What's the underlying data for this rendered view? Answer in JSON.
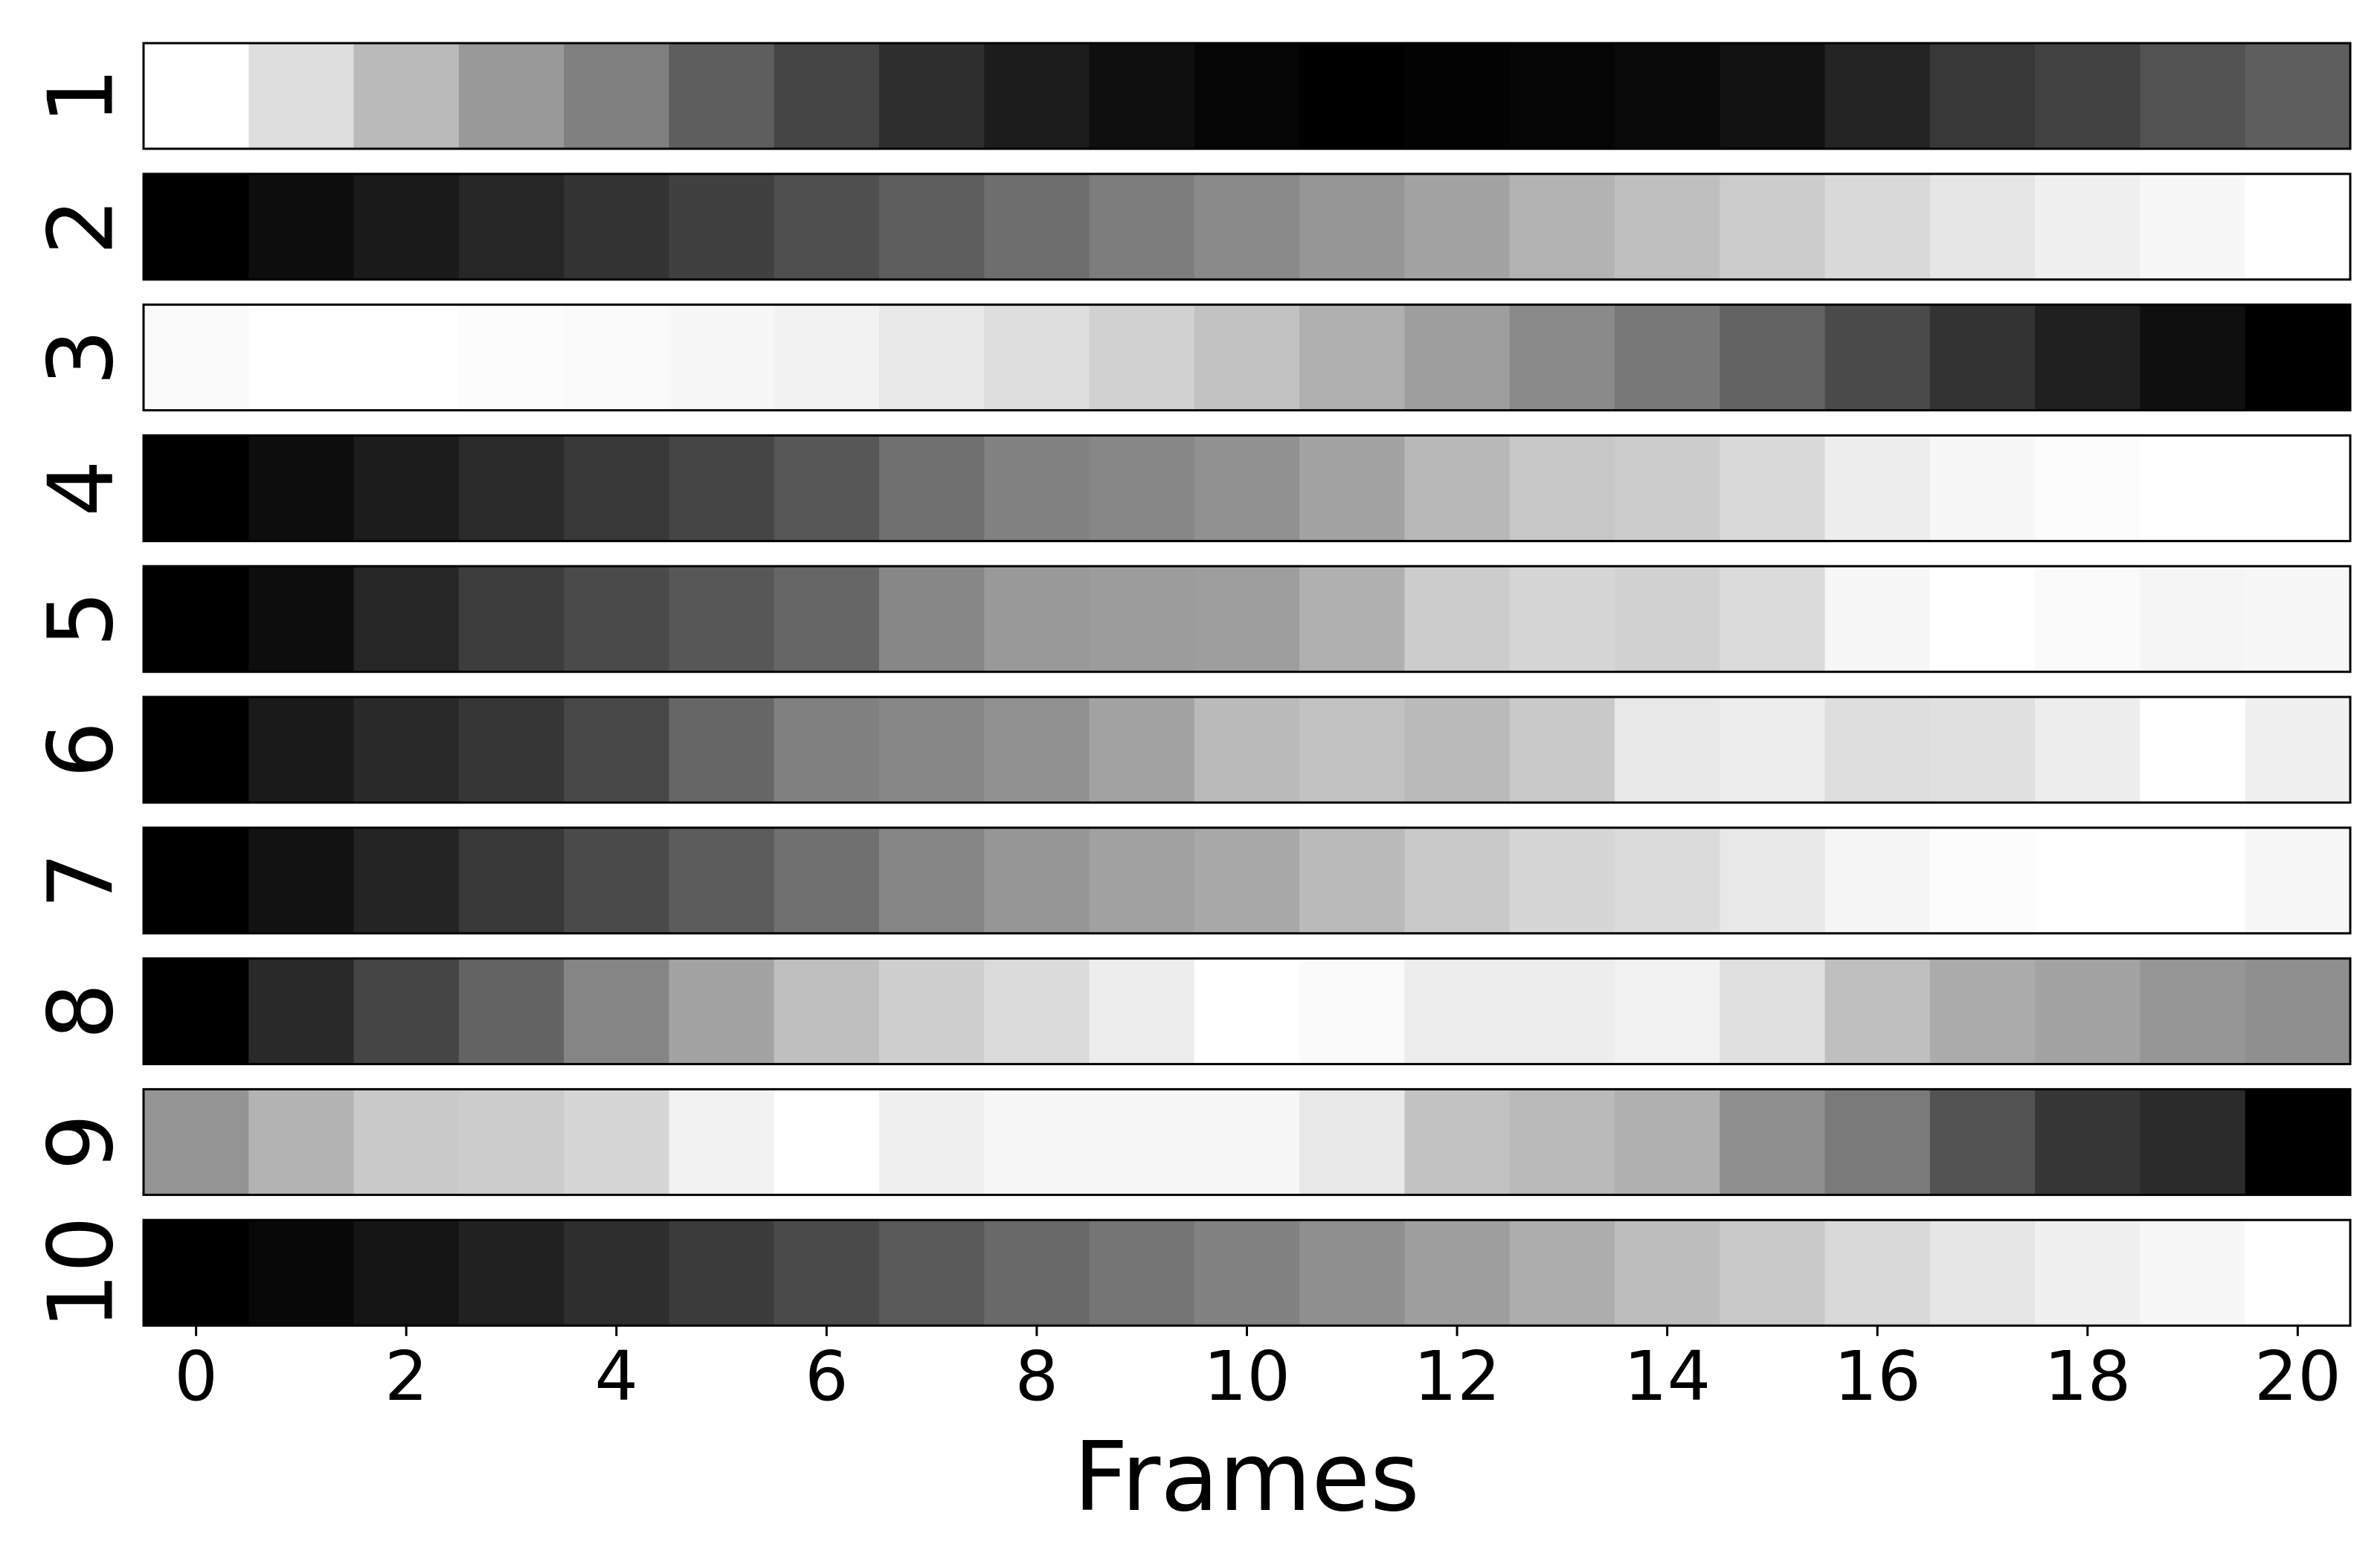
{
  "chart_data": {
    "type": "heatmap",
    "colormap": "grayscale (0 = black, 1 = white)",
    "xlabel": "Frames",
    "xticks": [
      0,
      2,
      4,
      6,
      8,
      10,
      12,
      14,
      16,
      18,
      20
    ],
    "frames": [
      0,
      1,
      2,
      3,
      4,
      5,
      6,
      7,
      8,
      9,
      10,
      11,
      12,
      13,
      14,
      15,
      16,
      17,
      18,
      19,
      20
    ],
    "rows": [
      {
        "label": "1",
        "values": [
          1.0,
          0.87,
          0.73,
          0.6,
          0.5,
          0.37,
          0.27,
          0.18,
          0.11,
          0.06,
          0.02,
          0.0,
          0.01,
          0.02,
          0.04,
          0.07,
          0.14,
          0.22,
          0.26,
          0.32,
          0.37
        ]
      },
      {
        "label": "2",
        "values": [
          0.0,
          0.05,
          0.1,
          0.15,
          0.2,
          0.25,
          0.31,
          0.37,
          0.43,
          0.49,
          0.54,
          0.59,
          0.64,
          0.7,
          0.75,
          0.8,
          0.85,
          0.9,
          0.94,
          0.97,
          1.0
        ]
      },
      {
        "label": "3",
        "values": [
          0.98,
          1.0,
          1.0,
          0.99,
          0.98,
          0.97,
          0.95,
          0.91,
          0.87,
          0.82,
          0.76,
          0.69,
          0.62,
          0.54,
          0.47,
          0.39,
          0.29,
          0.2,
          0.12,
          0.06,
          0.0
        ]
      },
      {
        "label": "4",
        "values": [
          0.0,
          0.05,
          0.11,
          0.17,
          0.22,
          0.27,
          0.34,
          0.44,
          0.51,
          0.53,
          0.57,
          0.64,
          0.72,
          0.78,
          0.8,
          0.85,
          0.93,
          0.97,
          0.99,
          1.0,
          1.0
        ]
      },
      {
        "label": "5",
        "values": [
          0.0,
          0.05,
          0.15,
          0.24,
          0.29,
          0.34,
          0.4,
          0.53,
          0.6,
          0.61,
          0.62,
          0.69,
          0.8,
          0.84,
          0.82,
          0.86,
          0.97,
          1.0,
          0.98,
          0.96,
          0.97
        ]
      },
      {
        "label": "6",
        "values": [
          0.0,
          0.1,
          0.16,
          0.21,
          0.28,
          0.4,
          0.5,
          0.53,
          0.57,
          0.64,
          0.73,
          0.76,
          0.73,
          0.79,
          0.91,
          0.93,
          0.87,
          0.88,
          0.93,
          1.0,
          0.94
        ]
      },
      {
        "label": "7",
        "values": [
          0.0,
          0.07,
          0.14,
          0.22,
          0.29,
          0.36,
          0.44,
          0.52,
          0.59,
          0.63,
          0.66,
          0.73,
          0.79,
          0.84,
          0.86,
          0.91,
          0.96,
          0.99,
          1.0,
          1.0,
          0.97
        ]
      },
      {
        "label": "8",
        "values": [
          0.0,
          0.16,
          0.27,
          0.39,
          0.52,
          0.64,
          0.75,
          0.81,
          0.86,
          0.93,
          1.0,
          0.98,
          0.93,
          0.93,
          0.95,
          0.88,
          0.75,
          0.67,
          0.64,
          0.59,
          0.56
        ]
      },
      {
        "label": "9",
        "values": [
          0.58,
          0.7,
          0.79,
          0.8,
          0.84,
          0.95,
          1.0,
          0.94,
          0.97,
          0.97,
          0.97,
          0.91,
          0.76,
          0.73,
          0.69,
          0.56,
          0.48,
          0.32,
          0.21,
          0.17,
          0.0
        ]
      },
      {
        "label": "10",
        "values": [
          0.0,
          0.03,
          0.08,
          0.13,
          0.18,
          0.23,
          0.29,
          0.35,
          0.41,
          0.46,
          0.51,
          0.56,
          0.62,
          0.68,
          0.74,
          0.79,
          0.85,
          0.9,
          0.94,
          0.97,
          1.0
        ]
      }
    ]
  }
}
